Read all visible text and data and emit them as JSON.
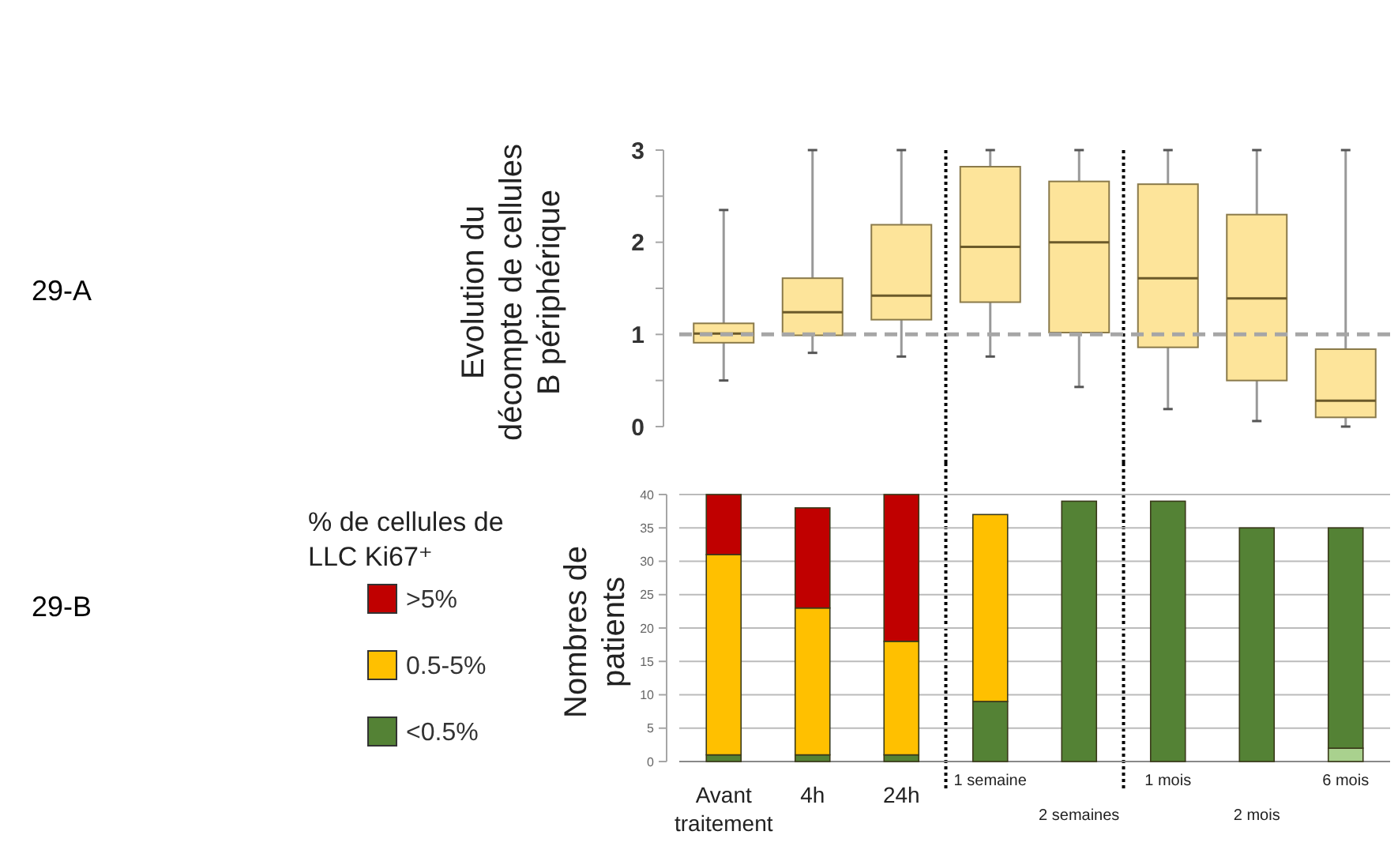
{
  "chart_data": [
    {
      "type": "box",
      "annotations": [
        "29-A"
      ],
      "ylabel": "Evolution du décompte de cellules B périphérique",
      "categories": [
        null,
        null,
        null,
        null,
        null,
        null,
        null,
        null
      ],
      "color": "#fde49a",
      "ylim": [
        0,
        3
      ],
      "yticks": [
        0,
        {
          "value": 0.5,
          "label": null
        },
        1,
        {
          "value": 1.5,
          "label": null
        },
        2,
        {
          "value": 2.5,
          "label": null
        },
        3
      ],
      "grid": false,
      "boxes": [
        {
          "low": 0.5,
          "q1": 0.91,
          "median": 1.01,
          "q3": 1.12,
          "high": 2.35
        },
        {
          "low": 0.8,
          "q1": 0.99,
          "median": 1.24,
          "q3": 1.61,
          "high": 3
        },
        {
          "low": 0.76,
          "q1": 1.16,
          "median": 1.42,
          "q3": 2.19,
          "high": 3
        },
        {
          "low": 0.76,
          "q1": 1.35,
          "median": 1.95,
          "q3": 2.82,
          "high": 3
        },
        {
          "low": 0.43,
          "q1": 1.02,
          "median": 2.0,
          "q3": 2.66,
          "high": 3
        },
        {
          "low": 0.19,
          "q1": 0.86,
          "median": 1.61,
          "q3": 2.63,
          "high": 3
        },
        {
          "low": 0.06,
          "q1": 0.5,
          "median": 1.39,
          "q3": 2.3,
          "high": 3
        },
        {
          "low": 0.0,
          "q1": 0.1,
          "median": 0.28,
          "q3": 0.84,
          "high": 3
        }
      ],
      "ref_lines": [
        {
          "axis": "y",
          "value": 1,
          "color": "#a6a6a6",
          "line_style": "dashed"
        }
      ]
    },
    {
      "type": "bar",
      "annotations": [
        "29-B"
      ],
      "ylabel": "Nombres de patients",
      "legend_title": "% de cellules de LLC Ki67⁺",
      "legend": "left",
      "stacked": true,
      "grid": "y",
      "categories": [
        "Avant traitement",
        "4h",
        "24h",
        "1 semaine",
        "2 semaines",
        "1 mois",
        "2 mois",
        "6 mois"
      ],
      "ylim": [
        0,
        40
      ],
      "yticks": [
        0,
        5,
        10,
        15,
        20,
        25,
        30,
        35,
        40
      ],
      "series": [
        {
          "color": "#a9d18e",
          "values": [
            0,
            0,
            0,
            0,
            0,
            0,
            0,
            2
          ]
        },
        {
          "name": "<0.5%",
          "color": "#548235",
          "values": [
            1,
            1,
            1,
            9,
            39,
            39,
            35,
            33
          ]
        },
        {
          "name": "0.5-5%",
          "color": "#ffc000",
          "values": [
            30,
            22,
            17,
            28,
            0,
            0,
            0,
            0
          ]
        },
        {
          "name": ">5%",
          "color": "#c00000",
          "values": [
            9,
            15,
            22,
            0,
            0,
            0,
            0,
            0
          ]
        }
      ]
    }
  ]
}
